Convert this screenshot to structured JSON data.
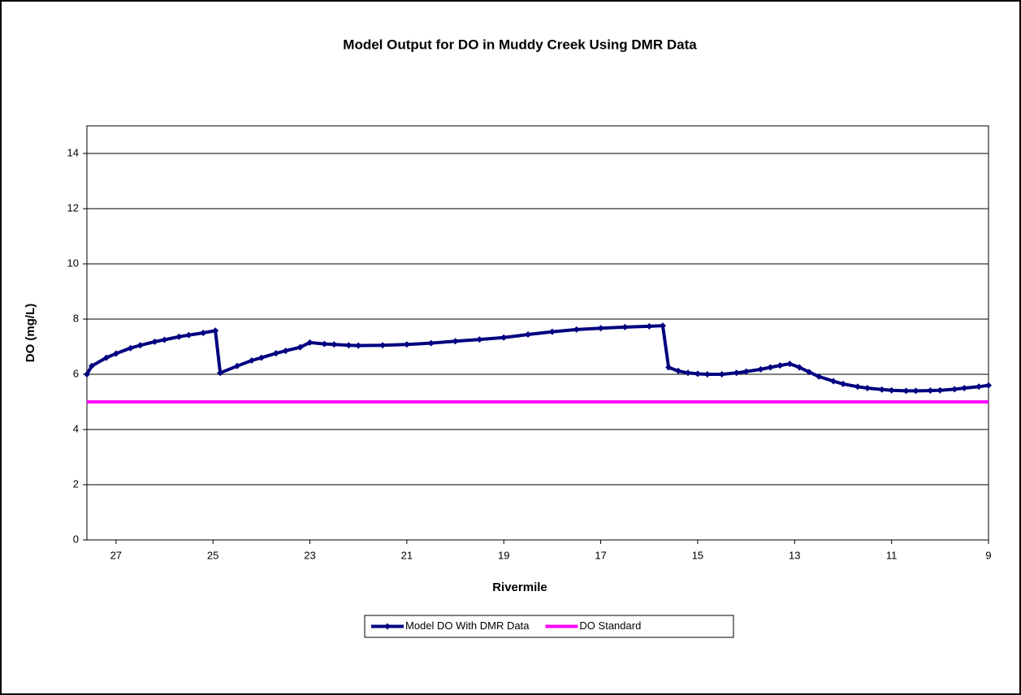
{
  "chart_data": {
    "type": "line",
    "title": "Model Output for DO in Muddy Creek Using DMR Data",
    "x_label": "Rivermile",
    "y_label": "DO (mg/L)",
    "xlim": [
      27.6,
      9
    ],
    "xticks": [
      27,
      25,
      23,
      21,
      19,
      17,
      15,
      13,
      11,
      9
    ],
    "ylim": [
      0,
      15
    ],
    "yticks": [
      0,
      2,
      4,
      6,
      8,
      10,
      12,
      14
    ],
    "grid": true,
    "legend": "bottom",
    "series": [
      {
        "name": "Model DO With DMR Data",
        "color": "#000080",
        "markers": true,
        "x": [
          27.6,
          27.5,
          27.2,
          27,
          26.7,
          26.5,
          26.2,
          26,
          25.7,
          25.5,
          25.2,
          24.95,
          24.85,
          24.5,
          24.2,
          24,
          23.7,
          23.5,
          23.2,
          23,
          22.7,
          22.5,
          22.2,
          22,
          21.5,
          21,
          20.5,
          20,
          19.5,
          19,
          18.5,
          18,
          17.5,
          17,
          16.5,
          16,
          15.72,
          15.6,
          15.4,
          15.2,
          15,
          14.8,
          14.5,
          14.2,
          14,
          13.7,
          13.5,
          13.3,
          13.1,
          12.9,
          12.7,
          12.5,
          12.2,
          12,
          11.7,
          11.5,
          11.2,
          11,
          10.7,
          10.5,
          10.2,
          10,
          9.7,
          9.5,
          9.2,
          9
        ],
        "values": [
          6.0,
          6.3,
          6.6,
          6.75,
          6.95,
          7.05,
          7.18,
          7.25,
          7.36,
          7.42,
          7.5,
          7.58,
          6.05,
          6.3,
          6.5,
          6.6,
          6.76,
          6.85,
          6.98,
          7.15,
          7.1,
          7.08,
          7.05,
          7.04,
          7.05,
          7.08,
          7.13,
          7.2,
          7.26,
          7.33,
          7.44,
          7.54,
          7.62,
          7.67,
          7.71,
          7.74,
          7.76,
          6.25,
          6.12,
          6.05,
          6.02,
          6.0,
          6.0,
          6.05,
          6.1,
          6.18,
          6.25,
          6.32,
          6.38,
          6.25,
          6.08,
          5.92,
          5.75,
          5.65,
          5.55,
          5.5,
          5.45,
          5.42,
          5.4,
          5.4,
          5.41,
          5.42,
          5.46,
          5.5,
          5.55,
          5.6
        ]
      },
      {
        "name": "DO Standard",
        "color": "#ff00ff",
        "markers": false,
        "x": [
          27.6,
          9
        ],
        "values": [
          5,
          5
        ]
      }
    ]
  }
}
